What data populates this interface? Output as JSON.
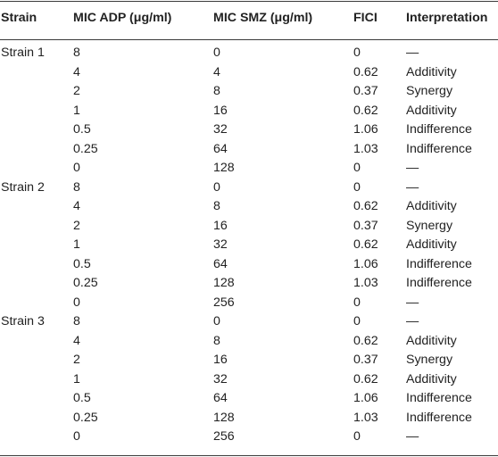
{
  "headers": [
    "Strain",
    "MIC ADP (μg/ml)",
    "MIC SMZ (μg/ml)",
    "FICI",
    "Interpretation"
  ],
  "rows": [
    [
      "Strain 1",
      "8",
      "0",
      "0",
      "—"
    ],
    [
      "",
      "4",
      "4",
      "0.62",
      "Additivity"
    ],
    [
      "",
      "2",
      "8",
      "0.37",
      "Synergy"
    ],
    [
      "",
      "1",
      "16",
      "0.62",
      "Additivity"
    ],
    [
      "",
      "0.5",
      "32",
      "1.06",
      "Indifference"
    ],
    [
      "",
      "0.25",
      "64",
      "1.03",
      "Indifference"
    ],
    [
      "",
      "0",
      "128",
      "0",
      "—"
    ],
    [
      "Strain 2",
      "8",
      "0",
      "0",
      "—"
    ],
    [
      "",
      "4",
      "8",
      "0.62",
      "Additivity"
    ],
    [
      "",
      "2",
      "16",
      "0.37",
      "Synergy"
    ],
    [
      "",
      "1",
      "32",
      "0.62",
      "Additivity"
    ],
    [
      "",
      "0.5",
      "64",
      "1.06",
      "Indifference"
    ],
    [
      "",
      "0.25",
      "128",
      "1.03",
      "Indifference"
    ],
    [
      "",
      "0",
      "256",
      "0",
      "—"
    ],
    [
      "Strain 3",
      "8",
      "0",
      "0",
      "—"
    ],
    [
      "",
      "4",
      "8",
      "0.62",
      "Additivity"
    ],
    [
      "",
      "2",
      "16",
      "0.37",
      "Synergy"
    ],
    [
      "",
      "1",
      "32",
      "0.62",
      "Additivity"
    ],
    [
      "",
      "0.5",
      "64",
      "1.06",
      "Indifference"
    ],
    [
      "",
      "0.25",
      "128",
      "1.03",
      "Indifference"
    ],
    [
      "",
      "0",
      "256",
      "0",
      "—"
    ]
  ]
}
